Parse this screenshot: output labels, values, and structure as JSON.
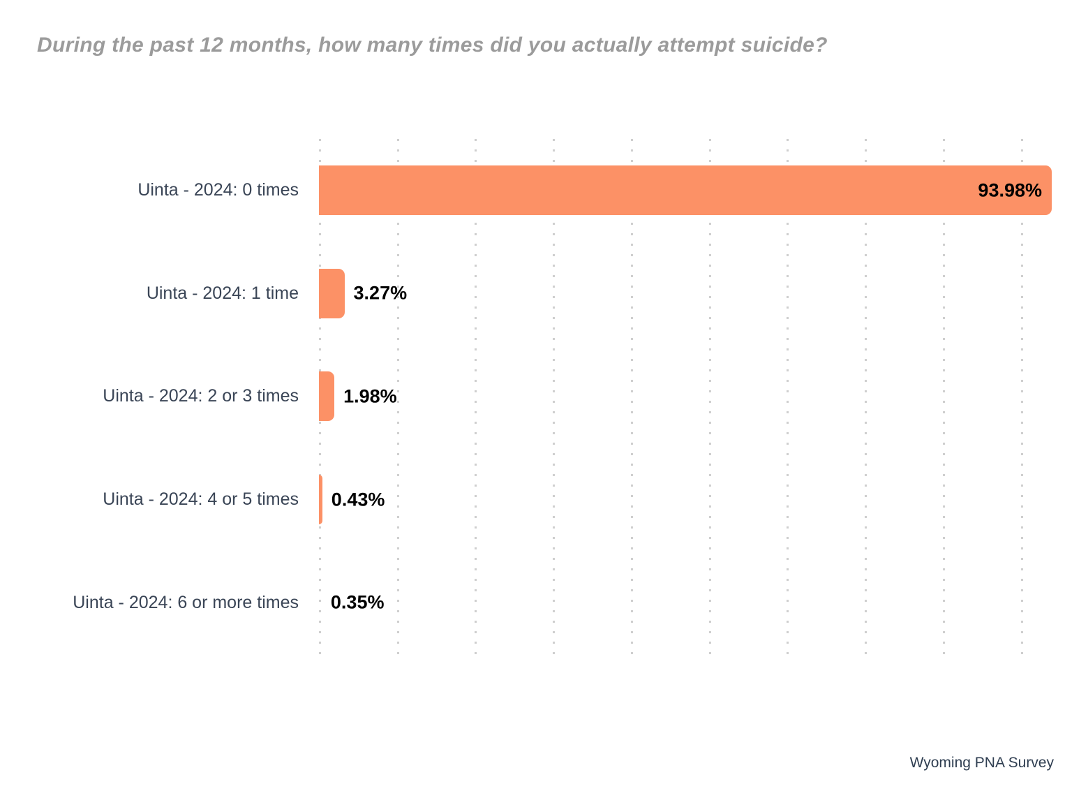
{
  "chart_data": {
    "type": "bar",
    "orientation": "horizontal",
    "title": "During the past 12 months, how many times did you actually attempt suicide?",
    "categories": [
      "Uinta - 2024: 0 times",
      "Uinta - 2024: 1 time",
      "Uinta - 2024: 2 or 3 times",
      "Uinta - 2024: 4 or 5 times",
      "Uinta - 2024: 6 or more times"
    ],
    "values": [
      93.98,
      3.27,
      1.98,
      0.43,
      0.35
    ],
    "value_labels": [
      "93.98%",
      "3.27%",
      "1.98%",
      "0.43%",
      "0.35%"
    ],
    "xlabel": "",
    "ylabel": "",
    "xlim": [
      0,
      93.98
    ],
    "gridline_step_pct": 10,
    "grid": true,
    "legend": false,
    "bar_color": "#fc9166",
    "title_color": "#9b9b9b",
    "category_label_color": "#3a4556",
    "value_label_color": "#000000",
    "gridline_color": "#cfcfcf",
    "source": "Wyoming PNA Survey"
  }
}
